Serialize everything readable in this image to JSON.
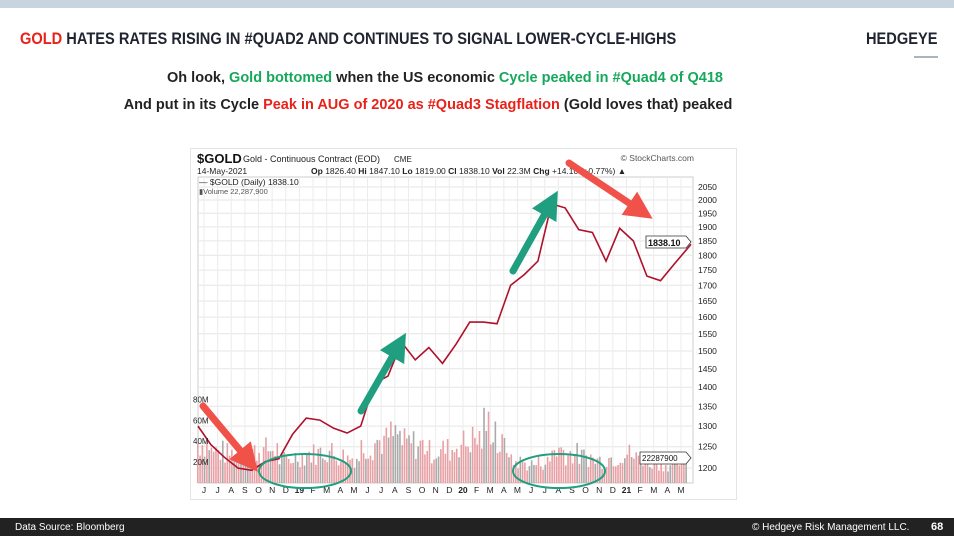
{
  "slide": {
    "title_highlight": "GOLD",
    "title_rest": " HATES RATES RISING IN #QUAD2 AND CONTINUES TO SIGNAL LOWER-CYCLE-HIGHS",
    "brand": "HEDGEYE",
    "line1": [
      {
        "text": "Oh look, ",
        "color": "dark"
      },
      {
        "text": "Gold bottomed",
        "color": "green"
      },
      {
        "text": " when the US economic ",
        "color": "dark"
      },
      {
        "text": "Cycle peaked in #Quad4 of Q418",
        "color": "green"
      }
    ],
    "line2": [
      {
        "text": "And put in its Cycle ",
        "color": "dark"
      },
      {
        "text": "Peak in AUG of 2020 as #Quad3 Stagflation",
        "color": "red"
      },
      {
        "text": " (Gold loves that) peaked",
        "color": "dark"
      }
    ],
    "footer_source": "Data Source: Bloomberg",
    "footer_copyright": "© Hedgeye Risk Management LLC.",
    "page_number": "68"
  },
  "colors": {
    "red": "#e8221b",
    "green": "#16a85a",
    "annotation_red": "#f0524a",
    "annotation_green": "#1f9e80"
  },
  "chart_data": {
    "type": "line",
    "symbol": "$GOLD",
    "name": "Gold - Continuous Contract (EOD)",
    "exchange": "CME",
    "source": "© StockCharts.com",
    "date": "14-May-2021",
    "quote": {
      "op_label": "Op",
      "op": "1826.40",
      "hi_label": "Hi",
      "hi": "1847.10",
      "lo_label": "Lo",
      "lo": "1819.00",
      "cl_label": "Cl",
      "cl": "1838.10",
      "vol_label": "Vol",
      "vol": "22.3M",
      "chg_label": "Chg",
      "chg": "+14.10 (+0.77%)"
    },
    "legend": {
      "price": "$GOLD (Daily) 1838.10",
      "volume": "Volume 22,287,900"
    },
    "last_price_label": "1838.10",
    "last_volume_label": "22287900",
    "y_scale": "log",
    "ylim": [
      1170,
      2090
    ],
    "y_ticks": [
      1200,
      1250,
      1300,
      1350,
      1400,
      1450,
      1500,
      1550,
      1600,
      1650,
      1700,
      1750,
      1800,
      1850,
      1900,
      1950,
      2000,
      2050
    ],
    "volume_ticks": [
      "20M",
      "40M",
      "60M",
      "80M"
    ],
    "volume_ylim": [
      0,
      90
    ],
    "x_tick_labels": [
      "J",
      "J",
      "A",
      "S",
      "O",
      "N",
      "D",
      "19",
      "F",
      "M",
      "A",
      "M",
      "J",
      "J",
      "A",
      "S",
      "O",
      "N",
      "D",
      "20",
      "F",
      "M",
      "A",
      "M",
      "J",
      "J",
      "A",
      "S",
      "O",
      "N",
      "D",
      "21",
      "F",
      "M",
      "A",
      "M"
    ],
    "series": [
      {
        "values": [
          1300,
          1255,
          1225,
          1200,
          1195,
          1215,
          1222,
          1280,
          1320,
          1315,
          1295,
          1283,
          1300,
          1410,
          1430,
          1525,
          1475,
          1510,
          1465,
          1520,
          1585,
          1585,
          1580,
          1700,
          1735,
          1780,
          1985,
          1970,
          1890,
          1880,
          1780,
          1895,
          1850,
          1730,
          1715,
          1770,
          1838
        ]
      },
      {
        "name": "Volume",
        "unit": "M",
        "values": [
          38,
          30,
          28,
          26,
          30,
          32,
          22,
          25,
          28,
          30,
          26,
          24,
          35,
          40,
          45,
          38,
          36,
          30,
          32,
          38,
          42,
          55,
          35,
          20,
          18,
          20,
          32,
          28,
          25,
          22,
          24,
          28,
          24,
          20,
          18,
          20,
          22
        ]
      }
    ],
    "grid": true
  }
}
